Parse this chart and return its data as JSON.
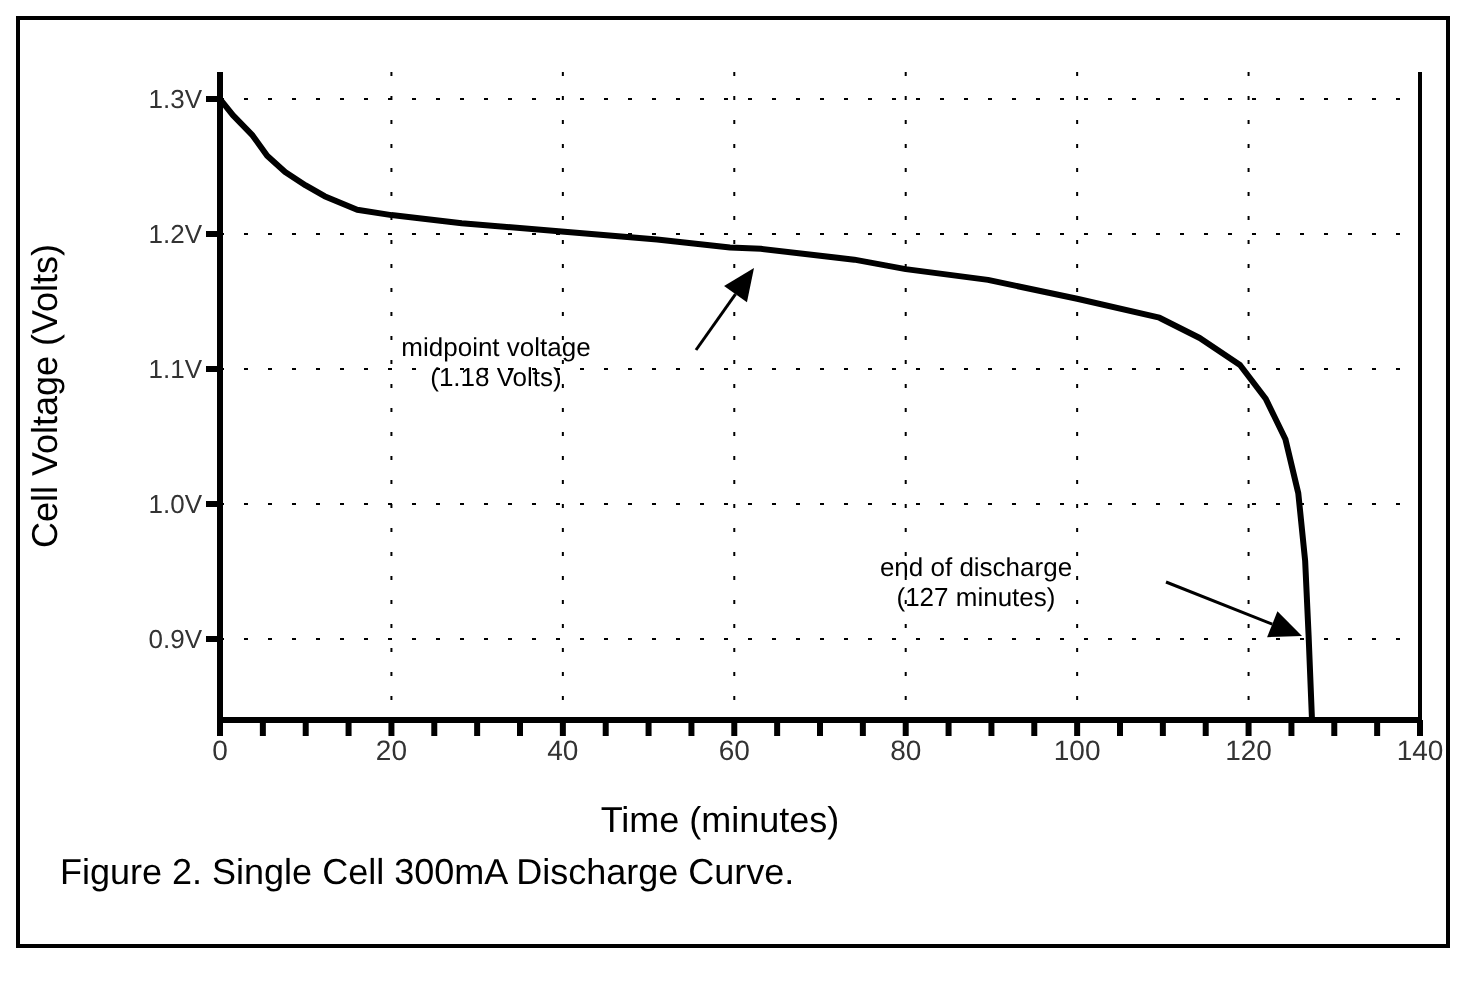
{
  "chart_data": {
    "type": "line",
    "xlabel": "Time (minutes)",
    "ylabel": "Cell Voltage (Volts)",
    "annotations": [
      "midpoint voltage\n(1.18 Volts)",
      "end of discharge\n(127 minutes)",
      "Figure 2.  Single Cell 300mA Discharge Curve."
    ],
    "series": [
      {
        "color": "#000000",
        "x": [
          0,
          1.5,
          3.8,
          5.5,
          7.6,
          10,
          12.2,
          16,
          20,
          28.2,
          39.5,
          51,
          59.5,
          63.1,
          74,
          80,
          89.6,
          100,
          109.6,
          114.3,
          119,
          122,
          124.3,
          125.8,
          126.6,
          127,
          127.4
        ],
        "values": [
          1.3,
          1.288,
          1.273,
          1.258,
          1.246,
          1.236,
          1.228,
          1.218,
          1.214,
          1.208,
          1.202,
          1.196,
          1.19,
          1.189,
          1.181,
          1.174,
          1.166,
          1.152,
          1.138,
          1.123,
          1.103,
          1.078,
          1.048,
          1.008,
          0.958,
          0.903,
          0.84
        ]
      }
    ],
    "xlim": [
      0,
      140
    ],
    "ylim": [
      0.84,
      1.32
    ],
    "xticks": [
      0,
      {
        "value": 5,
        "label": null
      },
      {
        "value": 10,
        "label": null
      },
      {
        "value": 15,
        "label": null
      },
      20,
      {
        "value": 25,
        "label": null
      },
      {
        "value": 30,
        "label": null
      },
      {
        "value": 35,
        "label": null
      },
      40,
      {
        "value": 45,
        "label": null
      },
      {
        "value": 50,
        "label": null
      },
      {
        "value": 55,
        "label": null
      },
      60,
      {
        "value": 65,
        "label": null
      },
      {
        "value": 70,
        "label": null
      },
      {
        "value": 75,
        "label": null
      },
      80,
      {
        "value": 85,
        "label": null
      },
      {
        "value": 90,
        "label": null
      },
      {
        "value": 95,
        "label": null
      },
      100,
      {
        "value": 105,
        "label": null
      },
      {
        "value": 110,
        "label": null
      },
      {
        "value": 115,
        "label": null
      },
      120,
      {
        "value": 125,
        "label": null
      },
      {
        "value": 130,
        "label": null
      },
      {
        "value": 135,
        "label": null
      },
      140
    ],
    "yticks": [
      {
        "value": 0.9,
        "label": "0.9V"
      },
      {
        "value": 1.0,
        "label": "1.0V"
      },
      {
        "value": 1.1,
        "label": "1.1V"
      },
      {
        "value": 1.2,
        "label": "1.2V"
      },
      {
        "value": 1.3,
        "label": "1.3V"
      }
    ],
    "grid": true,
    "line_style": "solid",
    "marker": "none"
  }
}
